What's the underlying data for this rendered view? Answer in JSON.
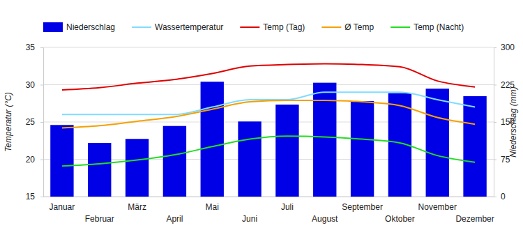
{
  "chart_data": {
    "type": "bar",
    "y_label": "Temperatur (°C)",
    "y2_label": "Niederschlag (mm)",
    "categories": [
      "Januar",
      "Februar",
      "März",
      "April",
      "Mai",
      "Juni",
      "Juli",
      "August",
      "September",
      "Oktober",
      "November",
      "Dezember"
    ],
    "ylim": [
      15,
      35
    ],
    "yticks": [
      15,
      20,
      25,
      30,
      35
    ],
    "y2lim": [
      0,
      300
    ],
    "y2ticks": [
      0,
      75,
      150,
      225,
      300
    ],
    "grid": true,
    "legend": "top",
    "series": [
      {
        "name": "Niederschlag",
        "type": "bar",
        "axis": "y2",
        "color": "#0000e6",
        "values": [
          144,
          108,
          116,
          142,
          231,
          151,
          185,
          229,
          192,
          208,
          217,
          202
        ]
      },
      {
        "name": "Wassertemperatur",
        "type": "line",
        "color": "#80dcff",
        "values": [
          26,
          26,
          26,
          26,
          27,
          28,
          28,
          29,
          29,
          29,
          28,
          27
        ]
      },
      {
        "name": "Temp (Tag)",
        "type": "line",
        "color": "#e00000",
        "values": [
          29.3,
          29.6,
          30.2,
          30.7,
          31.5,
          32.5,
          32.7,
          32.8,
          32.7,
          32.4,
          30.5,
          29.7
        ]
      },
      {
        "name": "Ø Temp",
        "type": "line",
        "color": "#f5a000",
        "values": [
          24.2,
          24.5,
          25.1,
          25.7,
          26.7,
          27.7,
          27.9,
          27.9,
          27.7,
          27.2,
          25.6,
          24.7
        ]
      },
      {
        "name": "Temp (Nacht)",
        "type": "line",
        "color": "#22dd22",
        "values": [
          19.1,
          19.4,
          19.9,
          20.6,
          21.7,
          22.7,
          23.1,
          23.0,
          22.7,
          22.2,
          20.5,
          19.6
        ]
      }
    ]
  }
}
